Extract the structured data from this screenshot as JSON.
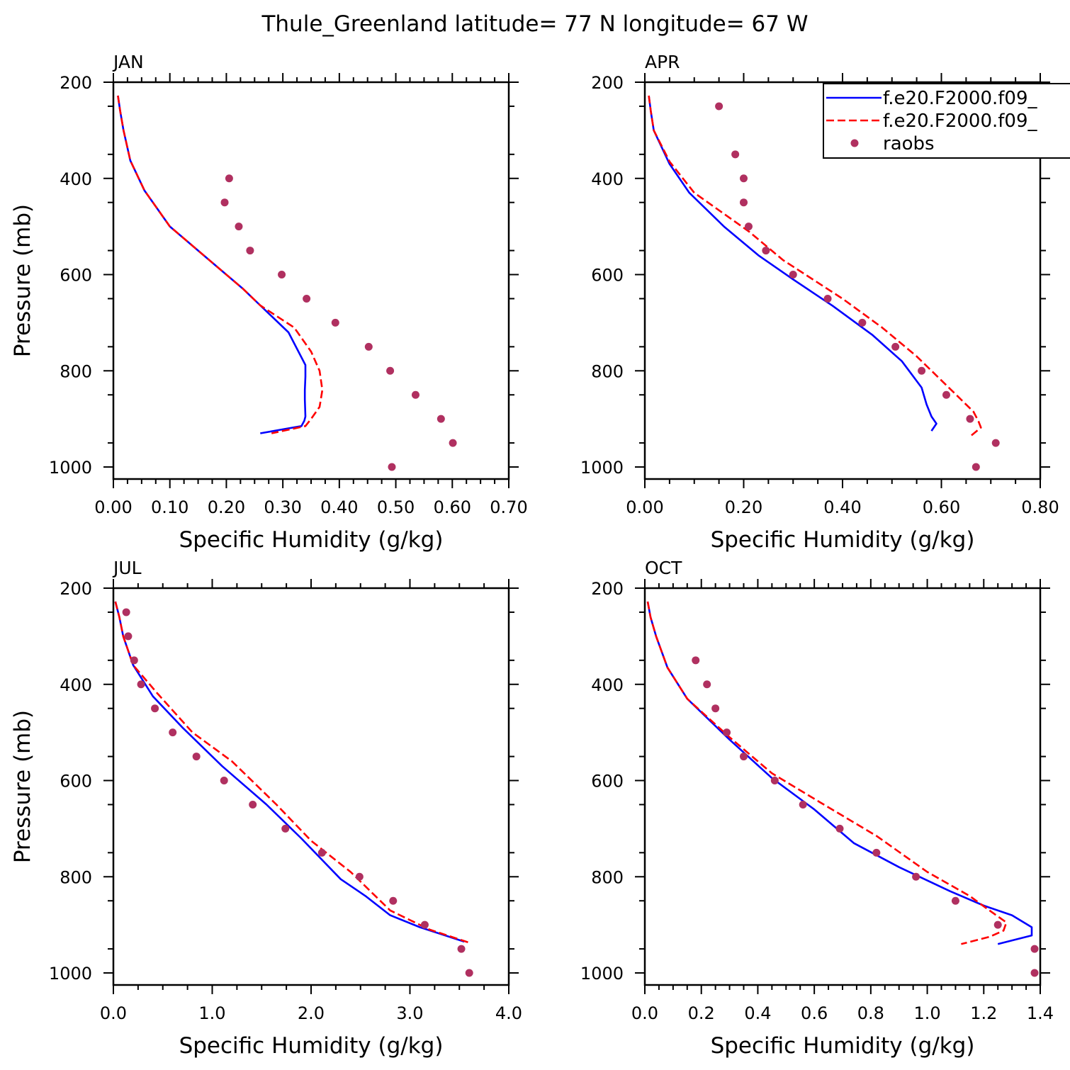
{
  "title": "Thule_Greenland  latitude= 77 N longitude= 67 W",
  "colors": {
    "model1": "#0000ff",
    "model2": "#ff0000",
    "raobs": "#b03060"
  },
  "legend": {
    "entries": [
      "f.e20.F2000.f09_",
      "f.e20.F2000.f09_",
      "raobs"
    ],
    "placement": "top-right of APR panel"
  },
  "chart_data": [
    {
      "type": "line",
      "panel": "JAN",
      "xlabel": "Specific Humidity (g/kg)",
      "ylabel": "Pressure (mb)",
      "xlim": [
        0,
        0.7
      ],
      "ylim": [
        200,
        1025
      ],
      "y_reversed": true,
      "xticks": [
        "0.00",
        "0.10",
        "0.20",
        "0.30",
        "0.40",
        "0.50",
        "0.60",
        "0.70"
      ],
      "yticks": [
        "200",
        "400",
        "600",
        "800",
        "1000"
      ],
      "series": [
        {
          "name": "f.e20.F2000.f09_",
          "style": "solid",
          "points": [
            [
              0.008,
              228
            ],
            [
              0.012,
              260
            ],
            [
              0.018,
              300
            ],
            [
              0.03,
              363
            ],
            [
              0.055,
              425
            ],
            [
              0.1,
              500
            ],
            [
              0.16,
              560
            ],
            [
              0.23,
              630
            ],
            [
              0.26,
              664
            ],
            [
              0.31,
              720
            ],
            [
              0.34,
              788
            ],
            [
              0.34,
              812
            ],
            [
              0.339,
              840
            ],
            [
              0.339,
              860
            ],
            [
              0.34,
              895
            ],
            [
              0.338,
              904
            ],
            [
              0.333,
              915
            ],
            [
              0.26,
              930
            ]
          ]
        },
        {
          "name": "f.e20.F2000.f09_",
          "style": "dashed",
          "points": [
            [
              0.008,
              228
            ],
            [
              0.012,
              260
            ],
            [
              0.018,
              300
            ],
            [
              0.03,
              363
            ],
            [
              0.055,
              425
            ],
            [
              0.1,
              500
            ],
            [
              0.16,
              560
            ],
            [
              0.23,
              630
            ],
            [
              0.26,
              664
            ],
            [
              0.32,
              710
            ],
            [
              0.35,
              760
            ],
            [
              0.365,
              800
            ],
            [
              0.37,
              840
            ],
            [
              0.365,
              875
            ],
            [
              0.35,
              900
            ],
            [
              0.34,
              915
            ],
            [
              0.28,
              930
            ]
          ]
        },
        {
          "name": "raobs",
          "style": "markers",
          "points": [
            [
              0.205,
              400
            ],
            [
              0.197,
              450
            ],
            [
              0.222,
              500
            ],
            [
              0.242,
              550
            ],
            [
              0.298,
              600
            ],
            [
              0.342,
              650
            ],
            [
              0.393,
              700
            ],
            [
              0.452,
              750
            ],
            [
              0.49,
              800
            ],
            [
              0.535,
              850
            ],
            [
              0.58,
              900
            ],
            [
              0.601,
              950
            ],
            [
              0.493,
              1000
            ]
          ]
        }
      ]
    },
    {
      "type": "line",
      "panel": "APR",
      "xlabel": "Specific Humidity (g/kg)",
      "ylabel": "",
      "xlim": [
        0,
        0.8
      ],
      "ylim": [
        200,
        1025
      ],
      "y_reversed": true,
      "xticks": [
        "0.00",
        "0.20",
        "0.40",
        "0.60",
        "0.80"
      ],
      "yticks": [
        "200",
        "400",
        "600",
        "800",
        "1000"
      ],
      "series": [
        {
          "name": "f.e20.F2000.f09_",
          "style": "solid",
          "points": [
            [
              0.008,
              228
            ],
            [
              0.012,
              260
            ],
            [
              0.018,
              300
            ],
            [
              0.05,
              370
            ],
            [
              0.09,
              430
            ],
            [
              0.16,
              500
            ],
            [
              0.23,
              560
            ],
            [
              0.3,
              610
            ],
            [
              0.38,
              665
            ],
            [
              0.46,
              725
            ],
            [
              0.52,
              780
            ],
            [
              0.56,
              835
            ],
            [
              0.57,
              870
            ],
            [
              0.58,
              895
            ],
            [
              0.59,
              910
            ],
            [
              0.58,
              925
            ]
          ]
        },
        {
          "name": "f.e20.F2000.f09_",
          "style": "dashed",
          "points": [
            [
              0.008,
              228
            ],
            [
              0.012,
              260
            ],
            [
              0.018,
              300
            ],
            [
              0.05,
              365
            ],
            [
              0.1,
              430
            ],
            [
              0.21,
              510
            ],
            [
              0.28,
              570
            ],
            [
              0.4,
              650
            ],
            [
              0.48,
              710
            ],
            [
              0.55,
              770
            ],
            [
              0.6,
              820
            ],
            [
              0.64,
              860
            ],
            [
              0.665,
              885
            ],
            [
              0.675,
              905
            ],
            [
              0.68,
              918
            ],
            [
              0.66,
              935
            ]
          ]
        },
        {
          "name": "raobs",
          "style": "markers",
          "points": [
            [
              0.15,
              250
            ],
            [
              0.183,
              350
            ],
            [
              0.2,
              400
            ],
            [
              0.2,
              450
            ],
            [
              0.21,
              500
            ],
            [
              0.245,
              550
            ],
            [
              0.3,
              600
            ],
            [
              0.37,
              650
            ],
            [
              0.44,
              700
            ],
            [
              0.507,
              750
            ],
            [
              0.56,
              800
            ],
            [
              0.61,
              850
            ],
            [
              0.658,
              900
            ],
            [
              0.71,
              950
            ],
            [
              0.67,
              1000
            ]
          ]
        }
      ]
    },
    {
      "type": "line",
      "panel": "JUL",
      "xlabel": "Specific Humidity (g/kg)",
      "ylabel": "Pressure (mb)",
      "xlim": [
        0,
        4.0
      ],
      "ylim": [
        200,
        1025
      ],
      "y_reversed": true,
      "xticks": [
        "0.0",
        "1.0",
        "2.0",
        "3.0",
        "4.0"
      ],
      "yticks": [
        "200",
        "400",
        "600",
        "800",
        "1000"
      ],
      "series": [
        {
          "name": "f.e20.F2000.f09_",
          "style": "solid",
          "points": [
            [
              0.02,
              228
            ],
            [
              0.06,
              260
            ],
            [
              0.1,
              300
            ],
            [
              0.2,
              360
            ],
            [
              0.4,
              425
            ],
            [
              0.7,
              490
            ],
            [
              1.1,
              570
            ],
            [
              1.55,
              650
            ],
            [
              1.9,
              720
            ],
            [
              2.3,
              805
            ],
            [
              2.55,
              840
            ],
            [
              2.8,
              880
            ],
            [
              3.1,
              905
            ],
            [
              3.55,
              935
            ]
          ]
        },
        {
          "name": "f.e20.F2000.f09_",
          "style": "dashed",
          "points": [
            [
              0.02,
              228
            ],
            [
              0.06,
              260
            ],
            [
              0.1,
              300
            ],
            [
              0.2,
              360
            ],
            [
              0.45,
              420
            ],
            [
              0.8,
              500
            ],
            [
              1.2,
              560
            ],
            [
              1.65,
              650
            ],
            [
              2.0,
              725
            ],
            [
              2.4,
              790
            ],
            [
              2.8,
              870
            ],
            [
              3.2,
              910
            ],
            [
              3.6,
              937
            ]
          ]
        },
        {
          "name": "raobs",
          "style": "markers",
          "points": [
            [
              0.13,
              250
            ],
            [
              0.15,
              300
            ],
            [
              0.21,
              350
            ],
            [
              0.28,
              400
            ],
            [
              0.42,
              450
            ],
            [
              0.6,
              500
            ],
            [
              0.84,
              550
            ],
            [
              1.12,
              600
            ],
            [
              1.41,
              650
            ],
            [
              1.74,
              700
            ],
            [
              2.11,
              750
            ],
            [
              2.49,
              800
            ],
            [
              2.83,
              850
            ],
            [
              3.15,
              900
            ],
            [
              3.52,
              950
            ],
            [
              3.6,
              1000
            ]
          ]
        }
      ]
    },
    {
      "type": "line",
      "panel": "OCT",
      "xlabel": "Specific Humidity (g/kg)",
      "ylabel": "",
      "xlim": [
        0,
        1.4
      ],
      "ylim": [
        200,
        1025
      ],
      "y_reversed": true,
      "xticks": [
        "0.0",
        "0.2",
        "0.4",
        "0.6",
        "0.8",
        "1.0",
        "1.2",
        "1.4"
      ],
      "yticks": [
        "200",
        "400",
        "600",
        "800",
        "1000"
      ],
      "series": [
        {
          "name": "f.e20.F2000.f09_",
          "style": "solid",
          "points": [
            [
              0.01,
              228
            ],
            [
              0.02,
              260
            ],
            [
              0.04,
              300
            ],
            [
              0.08,
              365
            ],
            [
              0.15,
              430
            ],
            [
              0.3,
              515
            ],
            [
              0.45,
              595
            ],
            [
              0.6,
              660
            ],
            [
              0.74,
              730
            ],
            [
              0.9,
              780
            ],
            [
              1.08,
              830
            ],
            [
              1.2,
              860
            ],
            [
              1.3,
              880
            ],
            [
              1.37,
              905
            ],
            [
              1.37,
              922
            ],
            [
              1.25,
              940
            ]
          ]
        },
        {
          "name": "f.e20.F2000.f09_",
          "style": "dashed",
          "points": [
            [
              0.01,
              228
            ],
            [
              0.02,
              260
            ],
            [
              0.04,
              300
            ],
            [
              0.08,
              365
            ],
            [
              0.15,
              430
            ],
            [
              0.3,
              510
            ],
            [
              0.45,
              585
            ],
            [
              0.62,
              645
            ],
            [
              0.82,
              715
            ],
            [
              1.0,
              790
            ],
            [
              1.15,
              840
            ],
            [
              1.22,
              870
            ],
            [
              1.28,
              895
            ],
            [
              1.27,
              912
            ],
            [
              1.22,
              925
            ],
            [
              1.12,
              940
            ]
          ]
        },
        {
          "name": "raobs",
          "style": "markers",
          "points": [
            [
              0.18,
              350
            ],
            [
              0.22,
              400
            ],
            [
              0.25,
              450
            ],
            [
              0.29,
              500
            ],
            [
              0.35,
              550
            ],
            [
              0.46,
              600
            ],
            [
              0.56,
              650
            ],
            [
              0.69,
              700
            ],
            [
              0.82,
              750
            ],
            [
              0.96,
              800
            ],
            [
              1.1,
              850
            ],
            [
              1.25,
              900
            ],
            [
              1.38,
              950
            ],
            [
              1.38,
              1000
            ]
          ]
        }
      ]
    }
  ]
}
